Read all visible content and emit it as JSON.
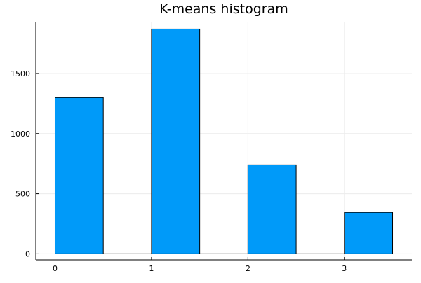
{
  "chart_data": {
    "type": "bar",
    "title": "K-means histogram",
    "xlabel": "",
    "ylabel": "",
    "bins": [
      {
        "x0": 0.0,
        "x1": 0.5,
        "value": 1300
      },
      {
        "x0": 0.5,
        "x1": 1.0,
        "value": 0
      },
      {
        "x0": 1.0,
        "x1": 1.5,
        "value": 1870
      },
      {
        "x0": 1.5,
        "x1": 2.0,
        "value": 0
      },
      {
        "x0": 2.0,
        "x1": 2.5,
        "value": 740
      },
      {
        "x0": 2.5,
        "x1": 3.0,
        "value": 0
      },
      {
        "x0": 3.0,
        "x1": 3.5,
        "value": 345
      }
    ],
    "xlim": [
      -0.2,
      3.7
    ],
    "ylim": [
      -50,
      1925
    ],
    "xticks": [
      0,
      1,
      2,
      3
    ],
    "xtick_labels": [
      "0",
      "1",
      "2",
      "3"
    ],
    "yticks": [
      0,
      500,
      1000,
      1500
    ],
    "ytick_labels": [
      "0",
      "500",
      "1000",
      "1500"
    ],
    "grid": true,
    "legend": "none",
    "colors": {
      "bar_fill": "#009af9",
      "bar_stroke": "#000000",
      "grid": "#ececec",
      "axis": "#000000"
    }
  }
}
